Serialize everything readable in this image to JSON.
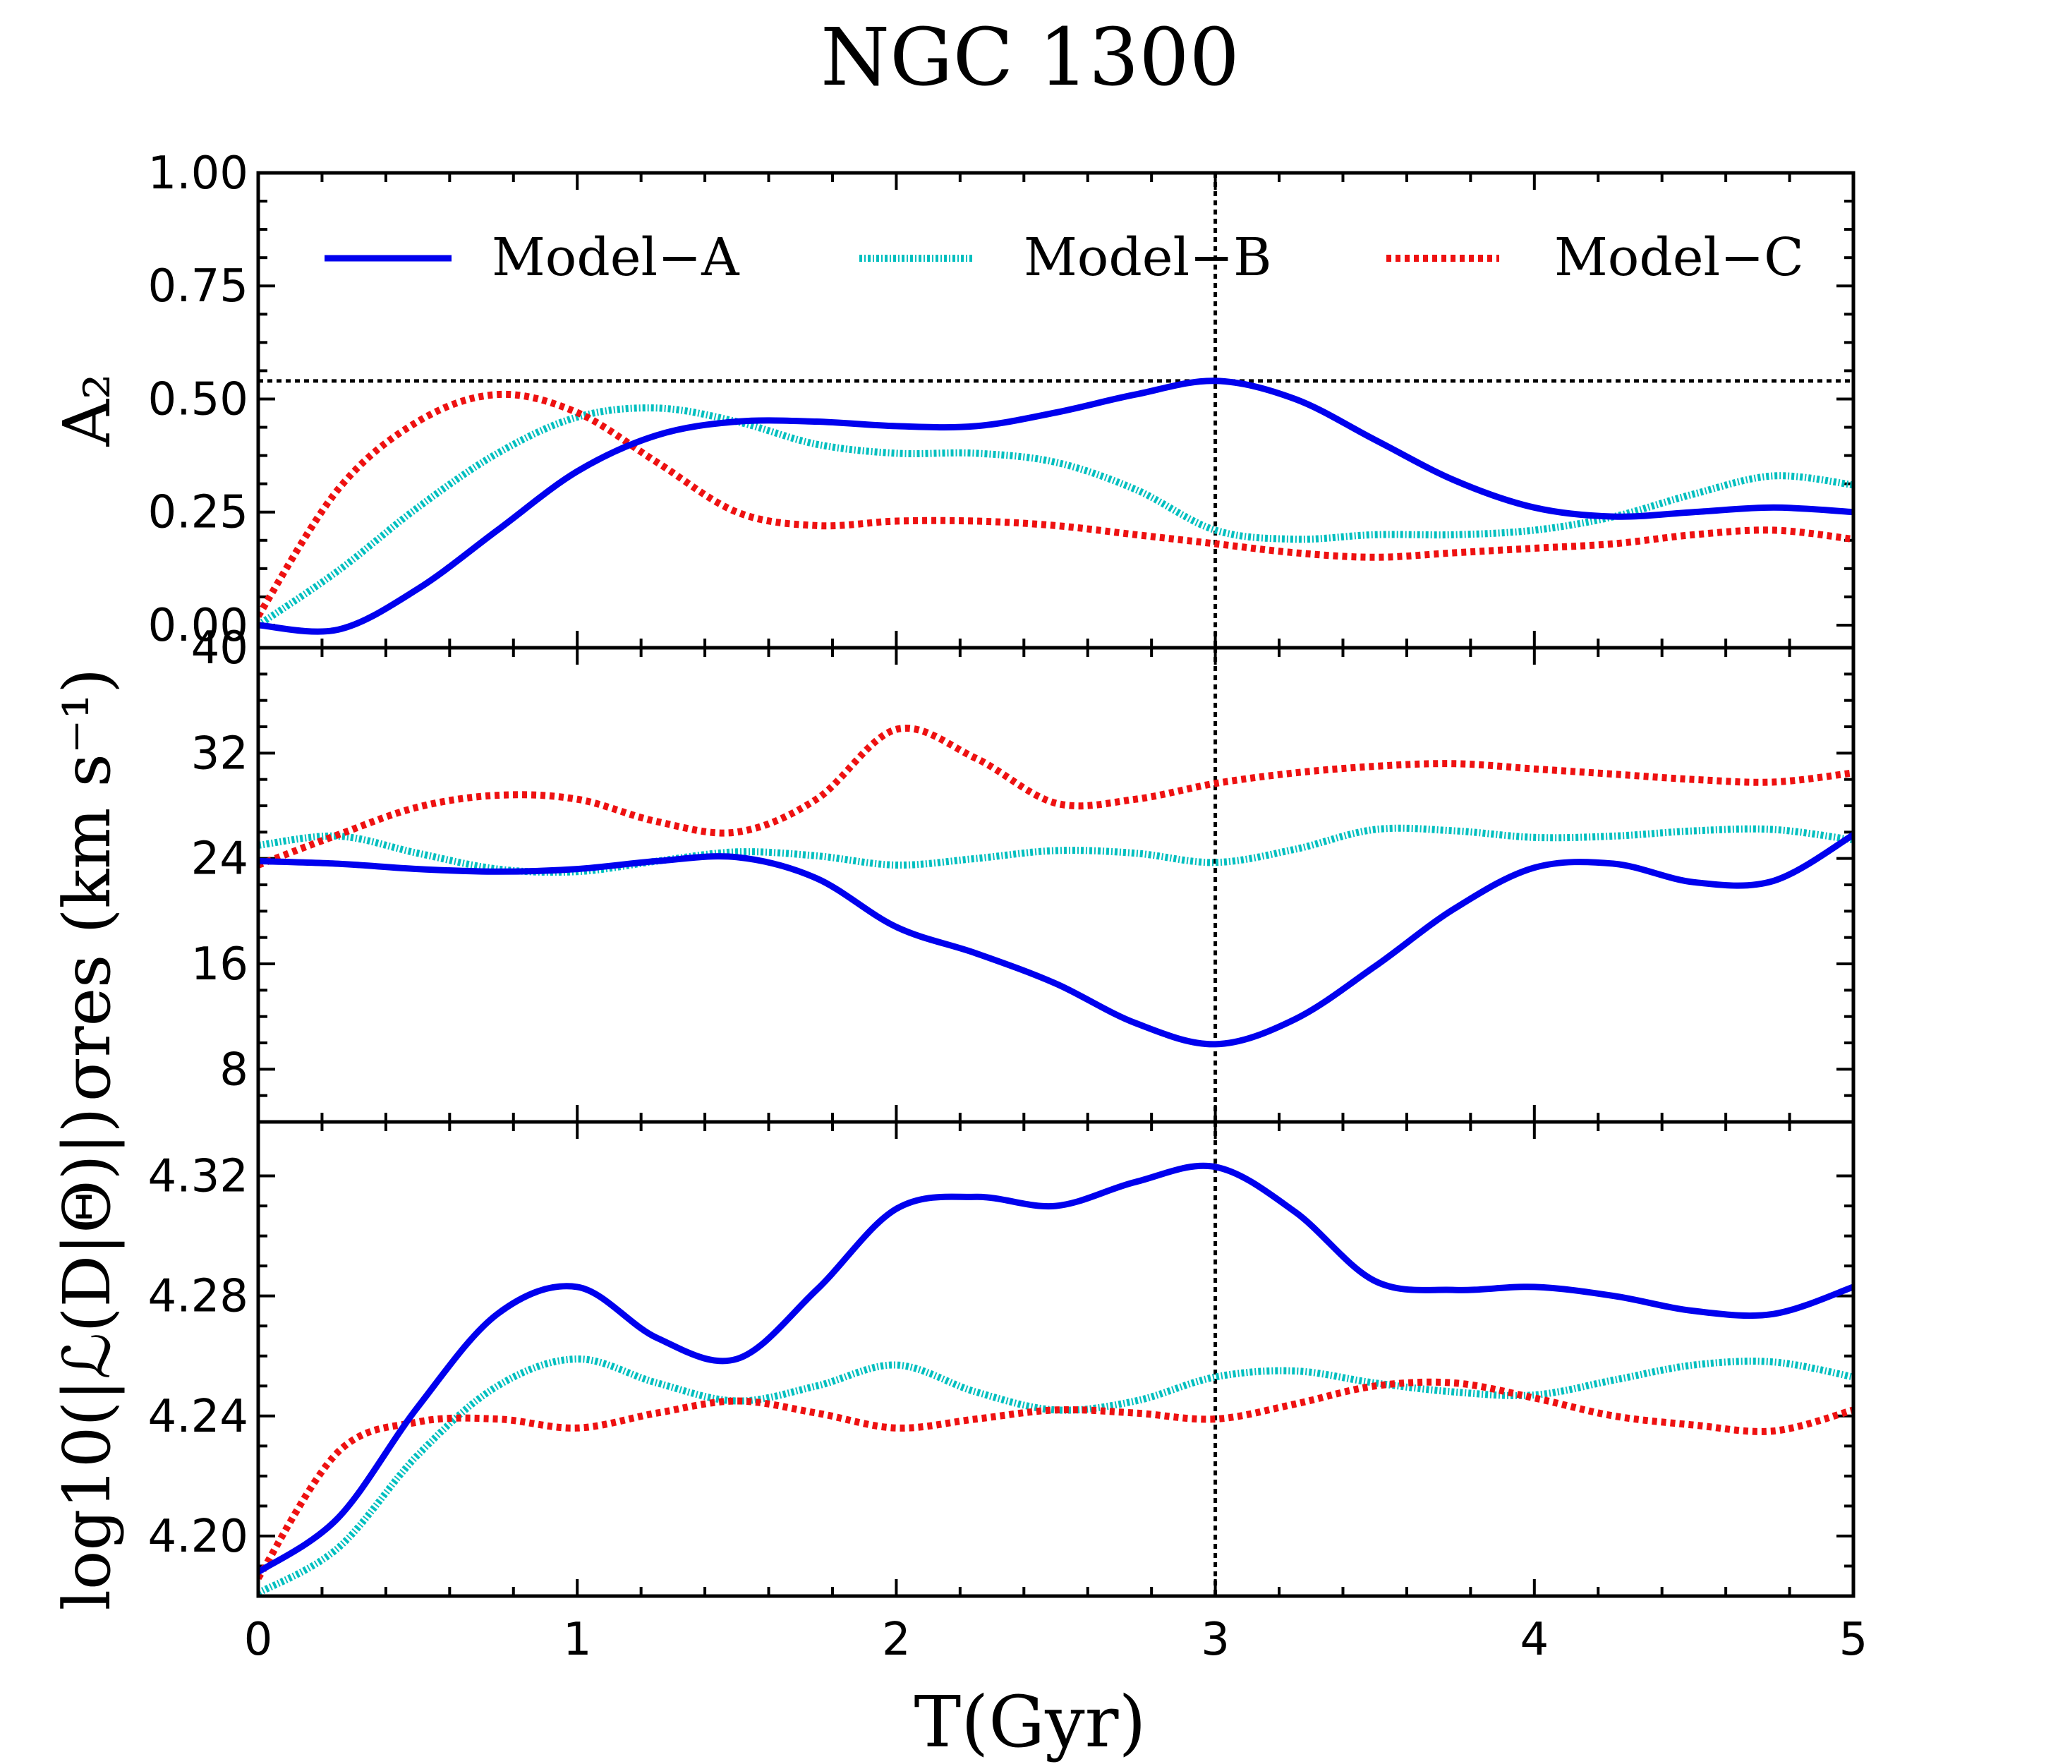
{
  "title": "NGC 1300",
  "xlabel": "T(Gyr)",
  "legend": [
    "Model−A",
    "Model−B",
    "Model−C"
  ],
  "colors": {
    "Model-A": "#0000ee",
    "Model-B": "#00bfbf",
    "Model-C": "#ee1111",
    "axis": "#000000"
  },
  "chart_data": [
    {
      "type": "line",
      "panel": "top",
      "ylabel": "A₂",
      "xlim": [
        0,
        5
      ],
      "ylim": [
        -0.05,
        1.0
      ],
      "yticks": [
        "0.00",
        "0.25",
        "0.50",
        "0.75",
        "1.00"
      ],
      "ytick_values": [
        0,
        0.25,
        0.5,
        0.75,
        1.0
      ],
      "ref_vline_x": 3.0,
      "ref_hline_y": 0.54,
      "x": [
        0,
        0.25,
        0.5,
        0.75,
        1.0,
        1.25,
        1.5,
        1.75,
        2.0,
        2.25,
        2.5,
        2.75,
        3.0,
        3.25,
        3.5,
        3.75,
        4.0,
        4.25,
        4.5,
        4.75,
        5.0
      ],
      "series": [
        {
          "name": "Model-A",
          "style": "solid",
          "values": [
            0.0,
            -0.01,
            0.08,
            0.21,
            0.34,
            0.42,
            0.45,
            0.45,
            0.44,
            0.44,
            0.47,
            0.51,
            0.54,
            0.5,
            0.41,
            0.32,
            0.26,
            0.24,
            0.25,
            0.26,
            0.25
          ]
        },
        {
          "name": "Model-B",
          "style": "dashdot",
          "values": [
            0.0,
            0.12,
            0.26,
            0.38,
            0.46,
            0.48,
            0.45,
            0.4,
            0.38,
            0.38,
            0.36,
            0.3,
            0.21,
            0.19,
            0.2,
            0.2,
            0.21,
            0.24,
            0.29,
            0.33,
            0.31
          ]
        },
        {
          "name": "Model-C",
          "style": "dotted",
          "values": [
            0.02,
            0.3,
            0.45,
            0.51,
            0.47,
            0.36,
            0.25,
            0.22,
            0.23,
            0.23,
            0.22,
            0.2,
            0.18,
            0.16,
            0.15,
            0.16,
            0.17,
            0.18,
            0.2,
            0.21,
            0.19
          ]
        }
      ]
    },
    {
      "type": "line",
      "panel": "middle",
      "ylabel": "σres (km s⁻¹)",
      "xlim": [
        0,
        5
      ],
      "ylim": [
        4,
        40
      ],
      "yticks": [
        "8",
        "16",
        "24",
        "32",
        "40"
      ],
      "ytick_values": [
        8,
        16,
        24,
        32,
        40
      ],
      "ref_vline_x": 3.0,
      "x": [
        0,
        0.25,
        0.5,
        0.75,
        1.0,
        1.25,
        1.5,
        1.75,
        2.0,
        2.25,
        2.5,
        2.75,
        3.0,
        3.25,
        3.5,
        3.75,
        4.0,
        4.25,
        4.5,
        4.75,
        5.0
      ],
      "series": [
        {
          "name": "Model-A",
          "style": "solid",
          "values": [
            23.8,
            23.6,
            23.2,
            23.0,
            23.2,
            23.8,
            24.1,
            22.5,
            18.8,
            16.8,
            14.5,
            11.5,
            9.9,
            11.8,
            15.8,
            20.2,
            23.3,
            23.6,
            22.2,
            22.3,
            25.8
          ]
        },
        {
          "name": "Model-B",
          "style": "dashdot",
          "values": [
            25.0,
            25.7,
            24.4,
            23.2,
            23.0,
            23.8,
            24.5,
            24.2,
            23.5,
            24.0,
            24.6,
            24.4,
            23.7,
            24.7,
            26.2,
            26.1,
            25.6,
            25.7,
            26.1,
            26.2,
            25.4
          ]
        },
        {
          "name": "Model-C",
          "style": "dotted",
          "values": [
            23.5,
            25.8,
            27.9,
            28.8,
            28.5,
            26.8,
            26.0,
            28.5,
            33.8,
            31.6,
            28.2,
            28.5,
            29.7,
            30.5,
            31.0,
            31.2,
            30.8,
            30.4,
            30.0,
            29.8,
            30.5
          ]
        }
      ]
    },
    {
      "type": "line",
      "panel": "bottom",
      "ylabel": "log10(|ℒ(D|Θ)|)",
      "xlim": [
        0,
        5
      ],
      "ylim": [
        4.18,
        4.338
      ],
      "yticks": [
        "4.20",
        "4.24",
        "4.28",
        "4.32"
      ],
      "ytick_values": [
        4.2,
        4.24,
        4.28,
        4.32
      ],
      "ref_vline_x": 3.0,
      "x": [
        0,
        0.25,
        0.5,
        0.75,
        1.0,
        1.25,
        1.5,
        1.75,
        2.0,
        2.25,
        2.5,
        2.75,
        3.0,
        3.25,
        3.5,
        3.75,
        4.0,
        4.25,
        4.5,
        4.75,
        5.0
      ],
      "series": [
        {
          "name": "Model-A",
          "style": "solid",
          "values": [
            4.188,
            4.206,
            4.243,
            4.274,
            4.283,
            4.266,
            4.259,
            4.282,
            4.309,
            4.313,
            4.31,
            4.318,
            4.323,
            4.308,
            4.285,
            4.282,
            4.283,
            4.28,
            4.275,
            4.274,
            4.283
          ]
        },
        {
          "name": "Model-B",
          "style": "dashdot",
          "values": [
            4.181,
            4.196,
            4.227,
            4.25,
            4.259,
            4.251,
            4.245,
            4.25,
            4.257,
            4.248,
            4.242,
            4.245,
            4.253,
            4.255,
            4.251,
            4.248,
            4.247,
            4.252,
            4.257,
            4.258,
            4.253
          ]
        },
        {
          "name": "Model-C",
          "style": "dotted",
          "values": [
            4.186,
            4.228,
            4.238,
            4.239,
            4.236,
            4.241,
            4.245,
            4.241,
            4.236,
            4.239,
            4.242,
            4.241,
            4.239,
            4.244,
            4.25,
            4.251,
            4.246,
            4.24,
            4.237,
            4.235,
            4.242
          ]
        }
      ]
    }
  ]
}
